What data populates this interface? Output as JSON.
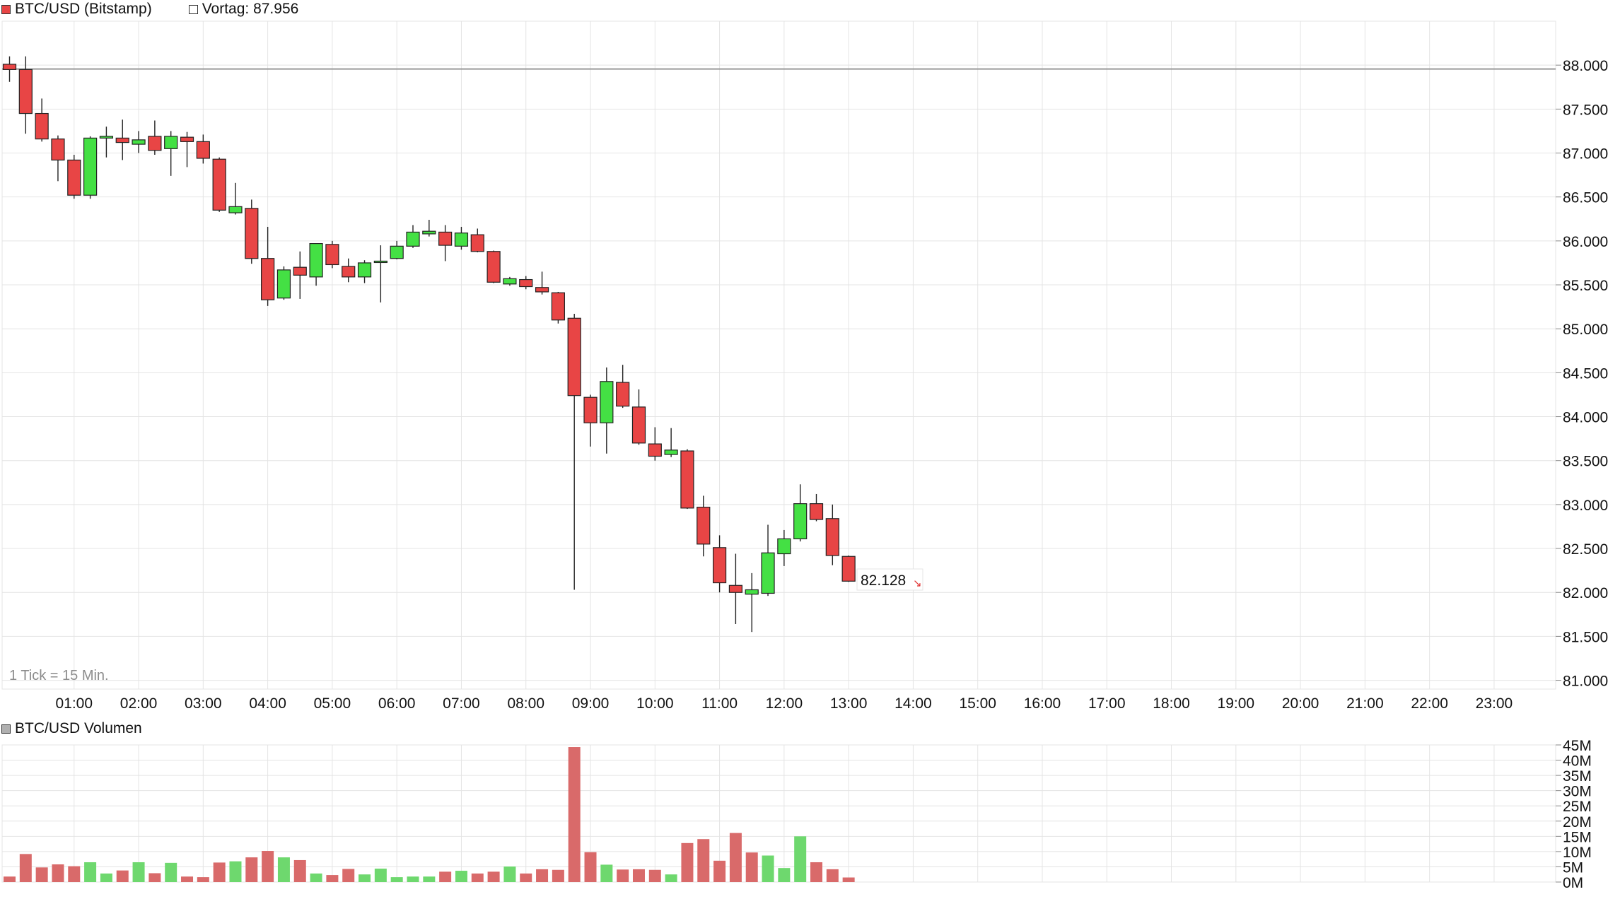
{
  "price_panel": {
    "legend": {
      "series_label": "BTC/USD (Bitstamp)",
      "series_color": "#e84545",
      "prev_label": "Vortag: 87.956",
      "prev_color": "#ffffff"
    },
    "tick_note": "1 Tick = 15 Min.",
    "last_price_label": "82.128"
  },
  "volume_panel": {
    "legend": {
      "series_label": "BTC/USD Volumen",
      "series_color": "#b0b0b0"
    }
  },
  "colors": {
    "up": "#44e044",
    "down": "#e84545",
    "up_volume": "#6ed86e",
    "down_volume": "#d96a6a",
    "grid": "#e4e4e4",
    "reference_line": "#9a9a9a",
    "tick_note": "#8c8c8c",
    "last_arrow": "#e03030"
  },
  "chart_data": [
    {
      "type": "candlestick",
      "title": "BTC/USD (Bitstamp)",
      "interval": "15 Min.",
      "reference_line": {
        "label": "Vortag",
        "value": 87956
      },
      "last_value": 82128,
      "ylim": [
        80900,
        88500
      ],
      "y_ticks": [
        {
          "value": 88000,
          "label": "88.000"
        },
        {
          "value": 87500,
          "label": "87.500"
        },
        {
          "value": 87000,
          "label": "87.000"
        },
        {
          "value": 86500,
          "label": "86.500"
        },
        {
          "value": 86000,
          "label": "86.000"
        },
        {
          "value": 85500,
          "label": "85.500"
        },
        {
          "value": 85000,
          "label": "85.000"
        },
        {
          "value": 84500,
          "label": "84.500"
        },
        {
          "value": 84000,
          "label": "84.000"
        },
        {
          "value": 83500,
          "label": "83.500"
        },
        {
          "value": 83000,
          "label": "83.000"
        },
        {
          "value": 82500,
          "label": "82.500"
        },
        {
          "value": 82000,
          "label": "82.000"
        },
        {
          "value": 81500,
          "label": "81.500"
        },
        {
          "value": 81000,
          "label": "81.000"
        }
      ],
      "x_ticks": [
        "01:00",
        "02:00",
        "03:00",
        "04:00",
        "05:00",
        "06:00",
        "07:00",
        "08:00",
        "09:00",
        "10:00",
        "11:00",
        "12:00",
        "13:00",
        "14:00",
        "15:00",
        "16:00",
        "17:00",
        "18:00",
        "19:00",
        "20:00",
        "21:00",
        "22:00",
        "23:00"
      ],
      "candles": [
        {
          "t": "00:00",
          "o": 88010,
          "h": 88100,
          "l": 87810,
          "c": 87950
        },
        {
          "t": "00:15",
          "o": 87950,
          "h": 88100,
          "l": 87220,
          "c": 87450
        },
        {
          "t": "00:30",
          "o": 87450,
          "h": 87620,
          "l": 87130,
          "c": 87160
        },
        {
          "t": "00:45",
          "o": 87160,
          "h": 87200,
          "l": 86680,
          "c": 86920
        },
        {
          "t": "01:00",
          "o": 86920,
          "h": 86980,
          "l": 86480,
          "c": 86520
        },
        {
          "t": "01:15",
          "o": 86520,
          "h": 87190,
          "l": 86480,
          "c": 87170
        },
        {
          "t": "01:30",
          "o": 87170,
          "h": 87300,
          "l": 86950,
          "c": 87190
        },
        {
          "t": "01:45",
          "o": 87170,
          "h": 87380,
          "l": 86920,
          "c": 87120
        },
        {
          "t": "02:00",
          "o": 87100,
          "h": 87250,
          "l": 87000,
          "c": 87150
        },
        {
          "t": "02:15",
          "o": 87190,
          "h": 87370,
          "l": 86980,
          "c": 87030
        },
        {
          "t": "02:30",
          "o": 87050,
          "h": 87250,
          "l": 86740,
          "c": 87190
        },
        {
          "t": "02:45",
          "o": 87180,
          "h": 87240,
          "l": 86840,
          "c": 87130
        },
        {
          "t": "03:00",
          "o": 87130,
          "h": 87210,
          "l": 86880,
          "c": 86940
        },
        {
          "t": "03:15",
          "o": 86930,
          "h": 86950,
          "l": 86330,
          "c": 86350
        },
        {
          "t": "03:30",
          "o": 86320,
          "h": 86660,
          "l": 86300,
          "c": 86390
        },
        {
          "t": "03:45",
          "o": 86370,
          "h": 86470,
          "l": 85740,
          "c": 85800
        },
        {
          "t": "04:00",
          "o": 85800,
          "h": 86160,
          "l": 85260,
          "c": 85330
        },
        {
          "t": "04:15",
          "o": 85350,
          "h": 85710,
          "l": 85330,
          "c": 85670
        },
        {
          "t": "04:30",
          "o": 85700,
          "h": 85880,
          "l": 85340,
          "c": 85610
        },
        {
          "t": "04:45",
          "o": 85590,
          "h": 85970,
          "l": 85490,
          "c": 85970
        },
        {
          "t": "05:00",
          "o": 85960,
          "h": 86000,
          "l": 85690,
          "c": 85730
        },
        {
          "t": "05:15",
          "o": 85710,
          "h": 85800,
          "l": 85530,
          "c": 85590
        },
        {
          "t": "05:30",
          "o": 85590,
          "h": 85780,
          "l": 85520,
          "c": 85750
        },
        {
          "t": "05:45",
          "o": 85760,
          "h": 85950,
          "l": 85300,
          "c": 85770
        },
        {
          "t": "06:00",
          "o": 85800,
          "h": 86000,
          "l": 85790,
          "c": 85940
        },
        {
          "t": "06:15",
          "o": 85940,
          "h": 86180,
          "l": 85920,
          "c": 86100
        },
        {
          "t": "06:30",
          "o": 86080,
          "h": 86240,
          "l": 86050,
          "c": 86110
        },
        {
          "t": "06:45",
          "o": 86100,
          "h": 86180,
          "l": 85770,
          "c": 85950
        },
        {
          "t": "07:00",
          "o": 85940,
          "h": 86160,
          "l": 85900,
          "c": 86090
        },
        {
          "t": "07:15",
          "o": 86070,
          "h": 86140,
          "l": 85870,
          "c": 85880
        },
        {
          "t": "07:30",
          "o": 85880,
          "h": 85890,
          "l": 85520,
          "c": 85530
        },
        {
          "t": "07:45",
          "o": 85510,
          "h": 85590,
          "l": 85490,
          "c": 85570
        },
        {
          "t": "08:00",
          "o": 85560,
          "h": 85600,
          "l": 85450,
          "c": 85480
        },
        {
          "t": "08:15",
          "o": 85470,
          "h": 85650,
          "l": 85390,
          "c": 85420
        },
        {
          "t": "08:30",
          "o": 85410,
          "h": 85420,
          "l": 85060,
          "c": 85100
        },
        {
          "t": "08:45",
          "o": 85120,
          "h": 85170,
          "l": 82030,
          "c": 84240
        },
        {
          "t": "09:00",
          "o": 84220,
          "h": 84250,
          "l": 83660,
          "c": 83930
        },
        {
          "t": "09:15",
          "o": 83930,
          "h": 84560,
          "l": 83580,
          "c": 84400
        },
        {
          "t": "09:30",
          "o": 84390,
          "h": 84590,
          "l": 84100,
          "c": 84120
        },
        {
          "t": "09:45",
          "o": 84110,
          "h": 84310,
          "l": 83680,
          "c": 83700
        },
        {
          "t": "10:00",
          "o": 83690,
          "h": 83880,
          "l": 83500,
          "c": 83550
        },
        {
          "t": "10:15",
          "o": 83570,
          "h": 83870,
          "l": 83540,
          "c": 83620
        },
        {
          "t": "10:30",
          "o": 83610,
          "h": 83630,
          "l": 82950,
          "c": 82960
        },
        {
          "t": "10:45",
          "o": 82970,
          "h": 83100,
          "l": 82410,
          "c": 82550
        },
        {
          "t": "11:00",
          "o": 82510,
          "h": 82650,
          "l": 82000,
          "c": 82110
        },
        {
          "t": "11:15",
          "o": 82080,
          "h": 82440,
          "l": 81640,
          "c": 82000
        },
        {
          "t": "11:30",
          "o": 81980,
          "h": 82220,
          "l": 81550,
          "c": 82030
        },
        {
          "t": "11:45",
          "o": 81990,
          "h": 82770,
          "l": 81960,
          "c": 82450
        },
        {
          "t": "12:00",
          "o": 82440,
          "h": 82710,
          "l": 82300,
          "c": 82610
        },
        {
          "t": "12:15",
          "o": 82610,
          "h": 83230,
          "l": 82580,
          "c": 83010
        },
        {
          "t": "12:30",
          "o": 83010,
          "h": 83120,
          "l": 82810,
          "c": 82830
        },
        {
          "t": "12:45",
          "o": 82840,
          "h": 83000,
          "l": 82310,
          "c": 82420
        },
        {
          "t": "13:00",
          "o": 82410,
          "h": 82420,
          "l": 82120,
          "c": 82128
        }
      ]
    },
    {
      "type": "bar",
      "title": "BTC/USD Volumen",
      "unit": "M",
      "ylim": [
        0,
        45
      ],
      "y_ticks": [
        {
          "value": 45,
          "label": "45M"
        },
        {
          "value": 40,
          "label": "40M"
        },
        {
          "value": 35,
          "label": "35M"
        },
        {
          "value": 30,
          "label": "30M"
        },
        {
          "value": 25,
          "label": "25M"
        },
        {
          "value": 20,
          "label": "20M"
        },
        {
          "value": 15,
          "label": "15M"
        },
        {
          "value": 10,
          "label": "10M"
        },
        {
          "value": 5,
          "label": "5M"
        },
        {
          "value": 0,
          "label": "0M"
        }
      ],
      "values": [
        1.8,
        9.2,
        4.8,
        5.8,
        5.2,
        6.5,
        2.8,
        3.8,
        6.5,
        2.9,
        6.3,
        1.8,
        1.6,
        6.4,
        6.8,
        8.1,
        10.2,
        8.1,
        7.2,
        2.8,
        2.3,
        4.3,
        2.5,
        4.4,
        1.6,
        1.8,
        1.8,
        3.4,
        3.7,
        2.8,
        3.4,
        5.1,
        2.8,
        4.2,
        4.0,
        44.3,
        9.8,
        5.7,
        4.1,
        4.2,
        4.0,
        2.5,
        12.8,
        14.1,
        7.0,
        16.1,
        9.7,
        8.7,
        4.6,
        15.0,
        6.5,
        4.2,
        1.5
      ],
      "directions": [
        "down",
        "down",
        "down",
        "down",
        "down",
        "up",
        "up",
        "down",
        "up",
        "down",
        "up",
        "down",
        "down",
        "down",
        "up",
        "down",
        "down",
        "up",
        "down",
        "up",
        "down",
        "down",
        "up",
        "up",
        "up",
        "up",
        "up",
        "down",
        "up",
        "down",
        "down",
        "up",
        "down",
        "down",
        "down",
        "down",
        "down",
        "up",
        "down",
        "down",
        "down",
        "up",
        "down",
        "down",
        "down",
        "down",
        "down",
        "up",
        "up",
        "up",
        "down",
        "down",
        "down"
      ]
    }
  ]
}
